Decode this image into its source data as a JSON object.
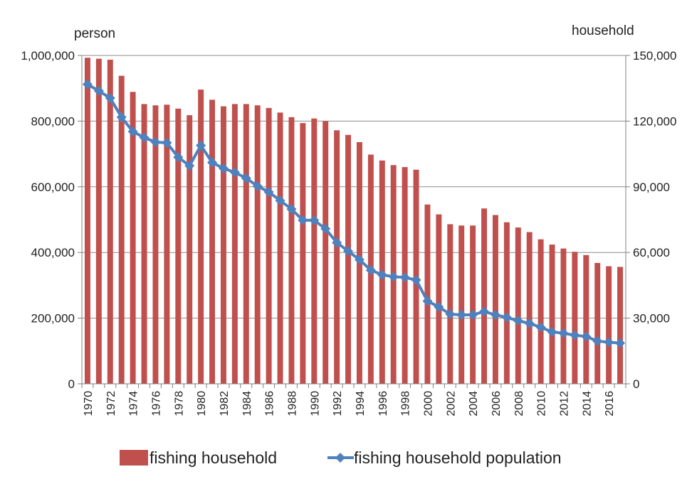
{
  "chart_data": {
    "type": "bar+line",
    "title": "",
    "left_axis": {
      "unit_label": "person",
      "range": [
        0,
        1000000
      ],
      "ticks": [
        0,
        200000,
        400000,
        600000,
        800000,
        1000000
      ],
      "tick_labels": [
        "0",
        "200,000",
        "400,000",
        "600,000",
        "800,000",
        "1,000,000"
      ]
    },
    "right_axis": {
      "unit_label": "household",
      "range": [
        0,
        150000
      ],
      "ticks": [
        0,
        30000,
        60000,
        90000,
        120000,
        150000
      ],
      "tick_labels": [
        "0",
        "30,000",
        "60,000",
        "90,000",
        "120,000",
        "150,000"
      ]
    },
    "x_labels_shown": [
      "1970",
      "1972",
      "1974",
      "1976",
      "1978",
      "1980",
      "1982",
      "1984",
      "1986",
      "1988",
      "1990",
      "1992",
      "1994",
      "1996",
      "1998",
      "2000",
      "2002",
      "2004",
      "2006",
      "2008",
      "2010",
      "2012",
      "2014",
      "2016"
    ],
    "grid": true,
    "legend_position": "bottom",
    "series": [
      {
        "name": "fishing household",
        "kind": "bar",
        "axis": "left",
        "color": "#C0504D",
        "x": [
          1970,
          1971,
          1972,
          1973,
          1974,
          1975,
          1976,
          1977,
          1978,
          1979,
          1980,
          1981,
          1982,
          1983,
          1984,
          1985,
          1986,
          1987,
          1988,
          1989,
          1990,
          1991,
          1992,
          1993,
          1994,
          1995,
          1996,
          1997,
          1998,
          1999,
          2000,
          2001,
          2002,
          2003,
          2004,
          2005,
          2006,
          2007,
          2008,
          2009,
          2010,
          2011,
          2012,
          2013,
          2014,
          2015,
          2016,
          2017
        ],
        "values": [
          993000,
          990000,
          987000,
          938000,
          889000,
          852000,
          848000,
          850000,
          838000,
          818000,
          896000,
          865000,
          845000,
          852000,
          852000,
          848000,
          840000,
          826000,
          812000,
          794000,
          808000,
          800000,
          772000,
          758000,
          736000,
          698000,
          680000,
          666000,
          660000,
          652000,
          546000,
          516000,
          486000,
          482000,
          482000,
          534000,
          514000,
          492000,
          476000,
          462000,
          440000,
          424000,
          412000,
          402000,
          392000,
          368000,
          358000,
          356000
        ]
      },
      {
        "name": "fishing household population",
        "kind": "line",
        "axis": "right",
        "color": "#4F81BD",
        "x": [
          1970,
          1971,
          1972,
          1973,
          1974,
          1975,
          1976,
          1977,
          1978,
          1979,
          1980,
          1981,
          1982,
          1983,
          1984,
          1985,
          1986,
          1987,
          1988,
          1989,
          1990,
          1991,
          1992,
          1993,
          1994,
          1995,
          1996,
          1997,
          1998,
          1999,
          2000,
          2001,
          2002,
          2003,
          2004,
          2005,
          2006,
          2007,
          2008,
          2009,
          2010,
          2011,
          2012,
          2013,
          2014,
          2015,
          2016,
          2017
        ],
        "values": [
          136800,
          133800,
          130500,
          121800,
          115200,
          112500,
          110400,
          110100,
          103500,
          99600,
          108900,
          101100,
          98400,
          96600,
          93900,
          90300,
          87600,
          83700,
          79800,
          74700,
          74700,
          70800,
          64500,
          60600,
          56700,
          51900,
          49800,
          48900,
          48600,
          47400,
          37800,
          35100,
          31800,
          31500,
          31500,
          33000,
          31500,
          30300,
          28800,
          27600,
          25800,
          23700,
          23100,
          22200,
          21600,
          19500,
          19000,
          18600
        ]
      }
    ]
  }
}
